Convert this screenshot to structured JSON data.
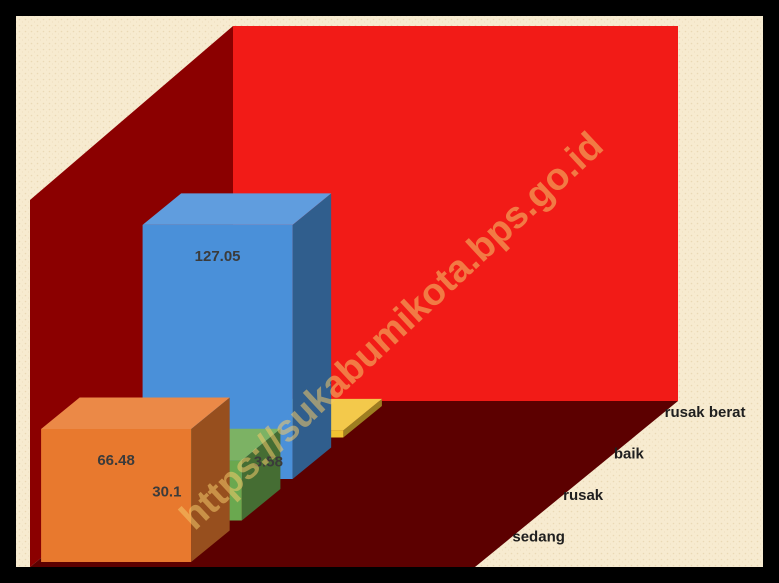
{
  "chart_data": {
    "type": "bar",
    "style": "3d-column",
    "categories": [
      "sedang",
      "rusak",
      "baik",
      "rusak berat"
    ],
    "values": [
      66.48,
      30.1,
      127.05,
      3.58
    ],
    "data_labels": [
      "66.48",
      "30.1",
      "127.05",
      "3.58"
    ],
    "colors": [
      "#E8792E",
      "#6AA84F",
      "#4A90D9",
      "#F1C232"
    ],
    "wall_color": "#F21B17",
    "side_wall_color": "#8B0000",
    "floor_color": "#5C0000",
    "background_color": "#F7EBD0",
    "title": "",
    "xlabel": "",
    "ylabel": "",
    "legend": "none",
    "grid": false
  },
  "watermark": "https://sukabumikota.bps.go.id"
}
